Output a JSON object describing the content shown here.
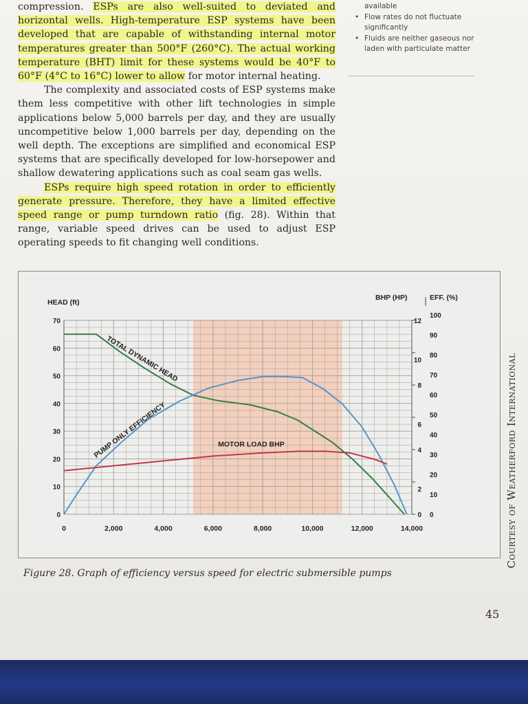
{
  "body_text": {
    "p1": [
      {
        "text": "compression. ",
        "hl": false
      },
      {
        "text": "ESPs are also well-suited to deviated and horizontal wells. High-temperature ESP systems have been developed that are capable of withstanding internal motor temperatures greater than 500°F (260°C). The actual working temperature (BHT) limit for these systems would be 40°F to 60°F (4°C to 16°C) lower to allow",
        "hl": true
      },
      {
        "text": " for motor internal heating.",
        "hl": false
      }
    ],
    "p2": [
      {
        "text": "The complexity and associated costs of ESP systems make them less competitive with other lift technologies in simple applications below 5,000 barrels per day, and they are usually uncompetitive below 1,000 barrels per day, depending on the well depth. The exceptions are simplified and economical ESP systems that are specifically developed for low-horsepower and shallow dewatering applications such as coal seam gas wells.",
        "hl": false
      }
    ],
    "p3": [
      {
        "text": "ESPs require high speed rotation in order to efficiently generate pressure. Therefore, they have a limited effective speed range or pump turndown ratio",
        "hl": true
      },
      {
        "text": " (fig. 28). Within that range, variable speed drives can be used to adjust ESP operating speeds to fit changing well conditions.",
        "hl": false
      }
    ]
  },
  "sidebar": {
    "lead": "available",
    "items": [
      "Flow rates do not fluctuate significantly",
      "Fluids are neither gaseous nor laden with particulate matter"
    ]
  },
  "figure": {
    "caption": "Figure 28.   Graph of efficiency versus speed for electric submersible pumps",
    "credit": "Courtesy of Weatherford International"
  },
  "page_number": "45",
  "chart_data": {
    "type": "line",
    "y_left_label": "HEAD (ft)",
    "y_right1_label": "BHP (HP)",
    "y_right2_label": "EFF. (%)",
    "x_ticks": [
      "0",
      "2,000",
      "4,000",
      "6,000",
      "8,000",
      "10,000",
      "12,000",
      "14,000"
    ],
    "y_left_ticks": [
      "0",
      "10",
      "20",
      "30",
      "40",
      "50",
      "60",
      "70"
    ],
    "y_bhp_ticks": [
      "0",
      "2",
      "4",
      "6",
      "8",
      "10",
      "12"
    ],
    "y_eff_ticks": [
      "0",
      "10",
      "20",
      "30",
      "40",
      "50",
      "60",
      "70",
      "80",
      "90",
      "100"
    ],
    "xlim": [
      0,
      14000
    ],
    "ylim_head": [
      0,
      70
    ],
    "ylim_bhp": [
      0,
      12
    ],
    "ylim_eff": [
      0,
      100
    ],
    "recommended_range": [
      5200,
      11200
    ],
    "grid": true,
    "colors": {
      "head": "#3a7d44",
      "efficiency": "#5b93c9",
      "bhp": "#c0394a",
      "range": "#f3c9b5"
    },
    "series": [
      {
        "name": "TOTAL DYNAMIC HEAD",
        "axis": "head",
        "x": [
          0,
          1300,
          2200,
          3200,
          4300,
          5200,
          6200,
          7500,
          8600,
          9400,
          10100,
          10800,
          11600,
          12400,
          13100,
          13700
        ],
        "y": [
          65,
          65,
          59,
          53,
          47,
          43,
          41,
          39.5,
          37,
          34,
          30,
          26,
          20,
          13,
          6,
          0
        ]
      },
      {
        "name": "PUMP ONLY EFFICIENCY",
        "axis": "efficiency",
        "x": [
          0,
          500,
          1300,
          2300,
          3400,
          4600,
          5800,
          7000,
          8000,
          8800,
          9600,
          10400,
          11200,
          12000,
          12700,
          13300,
          13800
        ],
        "y": [
          0,
          10,
          25,
          37,
          49,
          58,
          65,
          69,
          71,
          71,
          70.5,
          65,
          57,
          45,
          30,
          15,
          0
        ]
      },
      {
        "name": "MOTOR LOAD BHP",
        "axis": "bhp",
        "x": [
          0,
          2000,
          4000,
          6000,
          8000,
          9500,
          10500,
          11500,
          12500,
          13000
        ],
        "y": [
          2.7,
          3.0,
          3.3,
          3.6,
          3.8,
          3.9,
          3.9,
          3.8,
          3.4,
          3.1
        ]
      }
    ]
  }
}
